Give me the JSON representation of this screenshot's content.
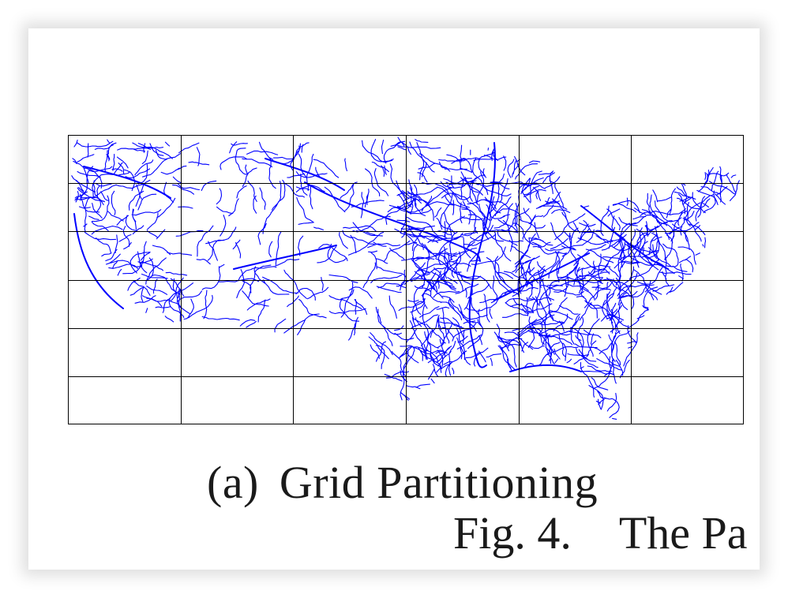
{
  "figure": {
    "subcaption_label": "(a)",
    "subcaption_text": "Grid Partitioning",
    "caption_number": "Fig. 4.",
    "caption_text_visible": "The Pa",
    "map_color": "#0000ff",
    "grid_color": "#000000",
    "grid": {
      "columns": 6,
      "rows": 6
    }
  }
}
